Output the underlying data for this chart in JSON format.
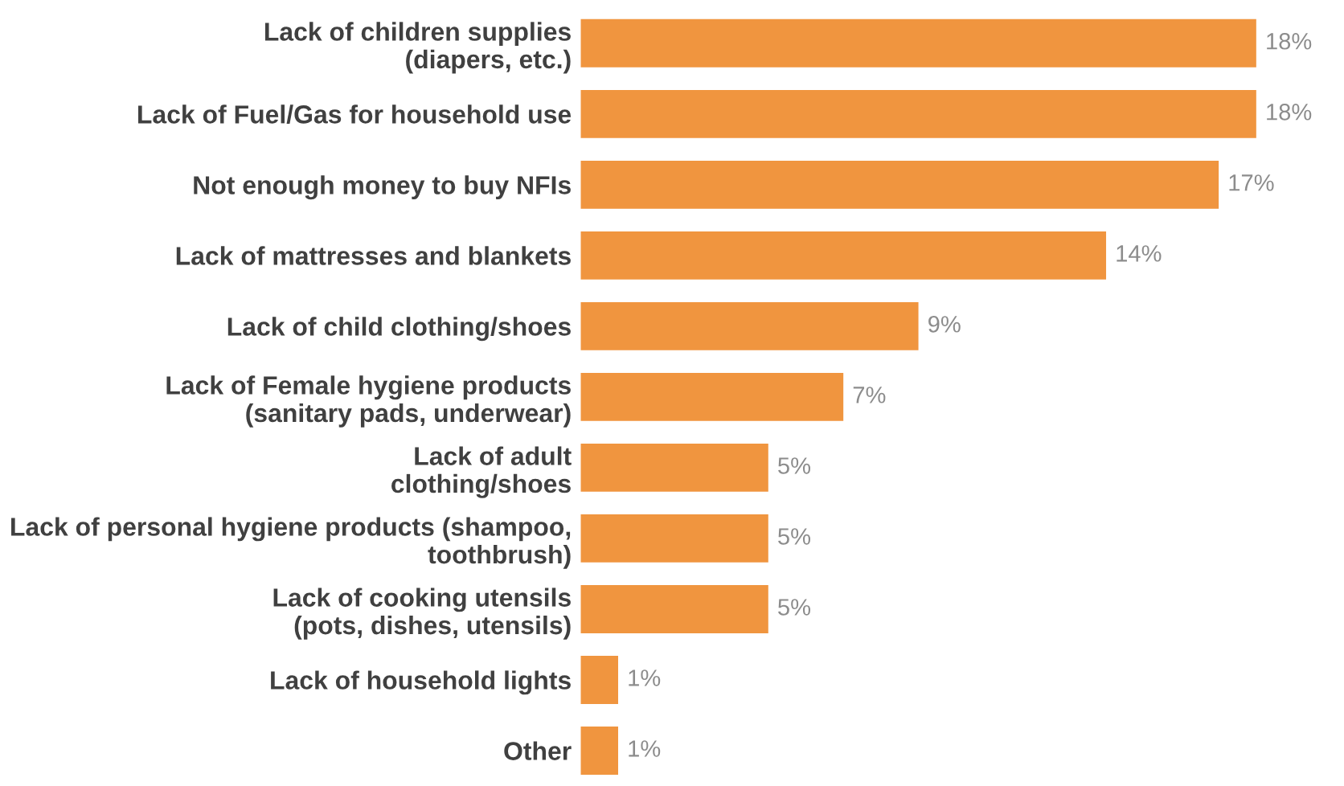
{
  "chart_data": {
    "type": "bar",
    "orientation": "horizontal",
    "categories": [
      "Lack of children supplies\n(diapers, etc.)",
      "Lack of Fuel/Gas for household use",
      "Not enough money to buy NFIs",
      "Lack of mattresses and blankets",
      "Lack of child clothing/shoes",
      "Lack of Female hygiene products\n(sanitary pads, underwear)",
      "Lack of adult\nclothing/shoes",
      "Lack of personal hygiene products (shampoo,\ntoothbrush)",
      "Lack of cooking utensils\n(pots, dishes, utensils)",
      "Lack of household lights",
      "Other"
    ],
    "values": [
      18,
      18,
      17,
      14,
      9,
      7,
      5,
      5,
      5,
      1,
      1
    ],
    "value_labels": [
      "18%",
      "18%",
      "17%",
      "14%",
      "9%",
      "7%",
      "5%",
      "5%",
      "5%",
      "1%",
      "1%"
    ],
    "color": "#f0953f",
    "grid": false,
    "legend": false
  }
}
